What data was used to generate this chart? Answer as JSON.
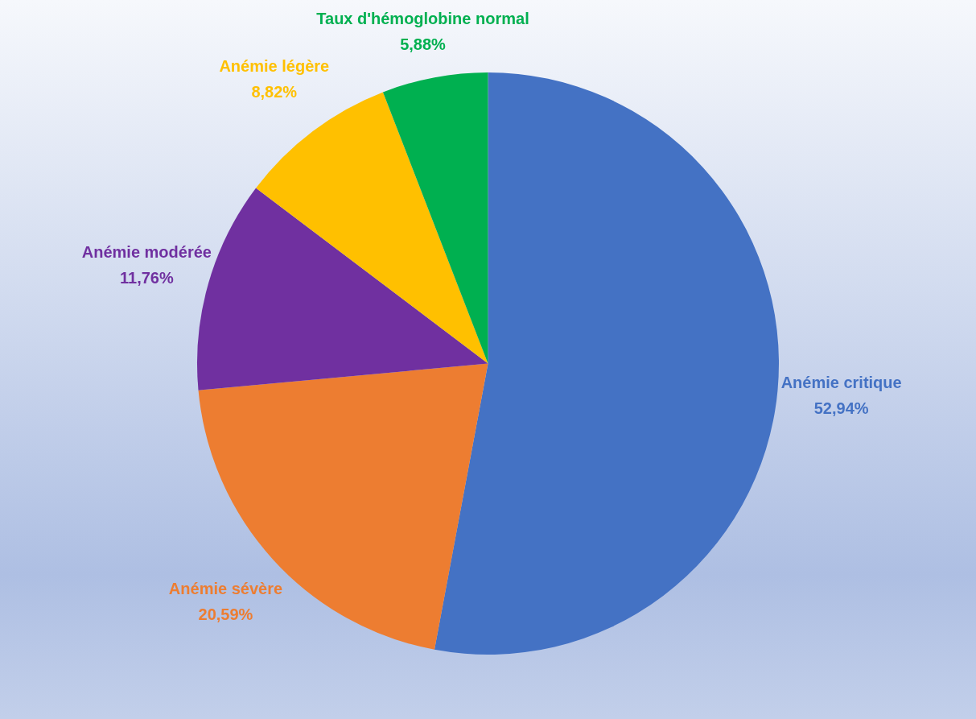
{
  "chart_data": {
    "type": "pie",
    "categories": [
      "Anémie critique",
      "Anémie sévère",
      "Anémie modérée",
      "Anémie légère",
      "Taux d'hémoglobine normal"
    ],
    "values": [
      52.94,
      20.59,
      11.76,
      8.82,
      5.88
    ],
    "value_labels": [
      "52,94%",
      "20,59%",
      "11,76%",
      "8,82%",
      "5,88%"
    ],
    "colors": [
      "#4472c4",
      "#ed7d31",
      "#7030a0",
      "#ffc000",
      "#00b050"
    ],
    "legend": false
  }
}
